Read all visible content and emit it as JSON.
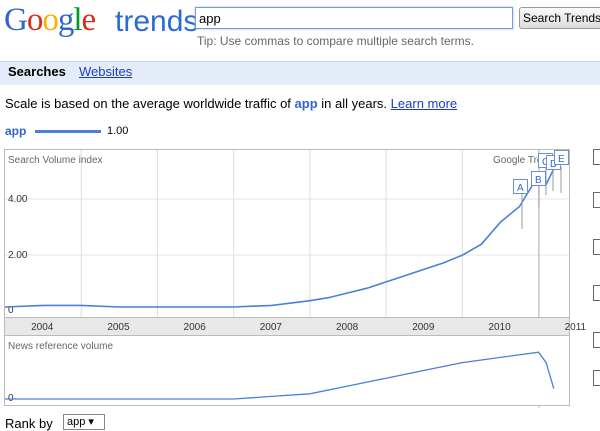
{
  "logo": {
    "google": "Google",
    "trends": "trends"
  },
  "search": {
    "value": "app",
    "button_label": "Search Trends",
    "tip": "Tip: Use commas to compare multiple search terms."
  },
  "tabs": [
    {
      "label": "Searches",
      "active": true
    },
    {
      "label": "Websites",
      "active": false
    }
  ],
  "scale_note": {
    "prefix": "Scale is based on the average worldwide traffic of ",
    "keyword": "app",
    "suffix": " in all years.",
    "link": "Learn more"
  },
  "legend": {
    "keyword": "app",
    "value": "1.00",
    "color": "#4a7fdc"
  },
  "search_volume_chart": {
    "title": "Search Volume index",
    "watermark": "Google Trends",
    "y_ticks": [
      "4.00",
      "2.00",
      "0"
    ],
    "markers": [
      "A",
      "B",
      "C",
      "D",
      "E"
    ]
  },
  "years": [
    "2004",
    "2005",
    "2006",
    "2007",
    "2008",
    "2009",
    "2010",
    "2011"
  ],
  "news_chart": {
    "title": "News reference volume",
    "y_ticks": [
      "0"
    ]
  },
  "rank": {
    "label": "Rank by",
    "selected": "app"
  },
  "chart_data": [
    {
      "type": "line",
      "title": "Search Volume index",
      "xlabel": "",
      "ylabel": "",
      "x": [
        2004.0,
        2004.5,
        2005.0,
        2005.5,
        2006.0,
        2006.5,
        2007.0,
        2007.5,
        2008.0,
        2008.25,
        2008.5,
        2008.75,
        2009.0,
        2009.25,
        2009.5,
        2009.75,
        2010.0,
        2010.25,
        2010.5,
        2010.75,
        2010.85,
        2011.0,
        2011.1,
        2011.2
      ],
      "series": [
        {
          "name": "app",
          "values": [
            0.0,
            0.05,
            0.05,
            0.0,
            0.0,
            0.0,
            0.0,
            0.05,
            0.2,
            0.3,
            0.45,
            0.6,
            0.8,
            1.0,
            1.2,
            1.4,
            1.65,
            2.0,
            2.7,
            3.2,
            3.6,
            4.2,
            3.9,
            4.4
          ]
        }
      ],
      "ylim": [
        0,
        5
      ],
      "grid": true
    },
    {
      "type": "line",
      "title": "News reference volume",
      "x": [
        2004.0,
        2005.0,
        2006.0,
        2007.0,
        2007.5,
        2008.0,
        2008.5,
        2009.0,
        2009.5,
        2010.0,
        2010.5,
        2011.0,
        2011.1,
        2011.2
      ],
      "series": [
        {
          "name": "app",
          "values": [
            0.0,
            0.0,
            0.0,
            0.0,
            0.05,
            0.1,
            0.25,
            0.4,
            0.55,
            0.7,
            0.8,
            0.9,
            0.7,
            0.2
          ]
        }
      ],
      "ylim": [
        0,
        1
      ]
    }
  ]
}
